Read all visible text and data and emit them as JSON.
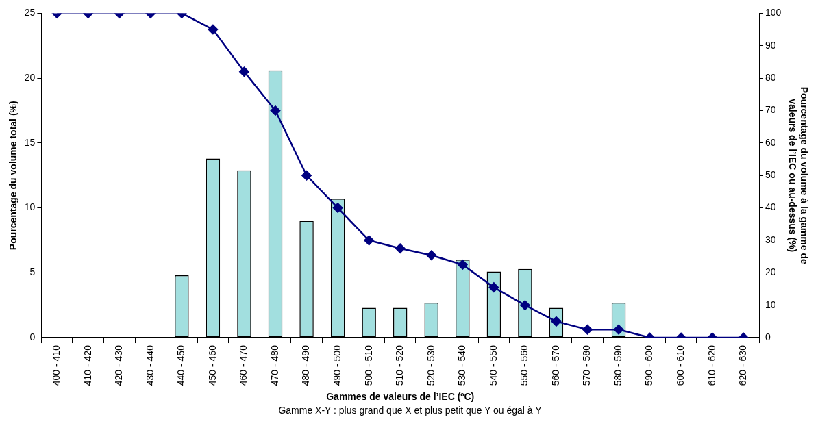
{
  "chart_data": {
    "type": "bar",
    "xlabel": "Gammes de valeurs de l’IEC (ºC)",
    "ylabel": "Pourcentage du volume total (%)",
    "y2label": "Pourcentage du volume à la gamme de valeurs de l’IEC ou au-dessus (%)",
    "categories": [
      "400 - 410",
      "410 - 420",
      "420 - 430",
      "430 - 440",
      "440 - 450",
      "450 - 460",
      "460 - 470",
      "470 - 480",
      "480 - 490",
      "490 - 500",
      "500 - 510",
      "510 - 520",
      "520 - 530",
      "530 - 540",
      "540 - 550",
      "550 - 560",
      "560 - 570",
      "570 - 580",
      "580 - 590",
      "590 - 600",
      "600 - 610",
      "610 - 620",
      "620 - 630"
    ],
    "series": [
      {
        "color": "#a2dfdf",
        "values": [
          null,
          null,
          null,
          null,
          4.8,
          13.8,
          12.9,
          20.6,
          9.0,
          10.7,
          2.3,
          2.3,
          2.7,
          6.0,
          5.1,
          5.3,
          2.3,
          null,
          2.7,
          null,
          null,
          null,
          null
        ]
      },
      {
        "type": "line",
        "axis": "y2",
        "color": "#000080",
        "marker": "diamond",
        "values": [
          100,
          100,
          100,
          100,
          100,
          95,
          82,
          70,
          50,
          40,
          30,
          27.5,
          25.4,
          22.5,
          15.5,
          10,
          5,
          2.5,
          2.5,
          0,
          0,
          0,
          0
        ]
      }
    ],
    "ylim": [
      0,
      25
    ],
    "yticks": [
      0,
      5,
      10,
      15,
      20,
      25
    ],
    "y2lim": [
      0,
      100
    ],
    "y2ticks": [
      0,
      10,
      20,
      30,
      40,
      50,
      60,
      70,
      80,
      90,
      100
    ],
    "grid": false,
    "legend": false,
    "annotations": [
      "Gamme X-Y : plus grand que X et plus petit que Y ou égal à Y"
    ]
  }
}
